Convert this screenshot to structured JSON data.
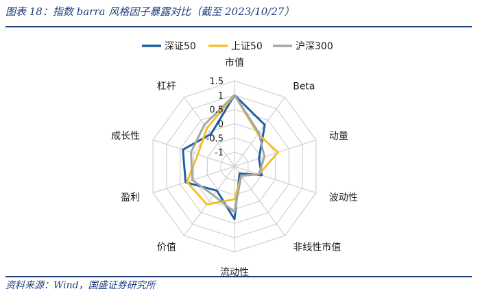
{
  "header": {
    "caption": "图表 18：指数 barra 风格因子暴露对比（截至 2023/10/27）"
  },
  "footer": {
    "source": "资料来源：Wind，国盛证券研究所"
  },
  "chart_data": {
    "type": "radar",
    "title": "",
    "axes": [
      "市值",
      "Beta",
      "动量",
      "波动性",
      "非线性市值",
      "流动性",
      "价值",
      "盈利",
      "成长性",
      "杠杆"
    ],
    "rlim": [
      -1.5,
      1.5
    ],
    "ticks": [
      -1,
      -0.5,
      0,
      0.5,
      1,
      1.5
    ],
    "tick_labels": [
      "-1",
      "-0.5",
      "0",
      "0.5",
      "1",
      "1.5"
    ],
    "grid": true,
    "legend_position": "top",
    "series": [
      {
        "name": "深证50",
        "color": "#1f5fa6",
        "values": [
          1.0,
          0.3,
          -0.6,
          -0.5,
          -1.2,
          0.35,
          -0.45,
          0.3,
          0.4,
          -0.1
        ]
      },
      {
        "name": "上证50",
        "color": "#f2c12e",
        "values": [
          1.0,
          -0.1,
          0.1,
          -0.6,
          -1.1,
          -0.35,
          0.15,
          0.25,
          -0.15,
          0.15
        ]
      },
      {
        "name": "沪深300",
        "color": "#a6a6a6",
        "values": [
          1.0,
          -0.05,
          -0.4,
          -0.6,
          -1.1,
          0.1,
          -0.25,
          0.05,
          0.1,
          0.3
        ]
      }
    ]
  }
}
